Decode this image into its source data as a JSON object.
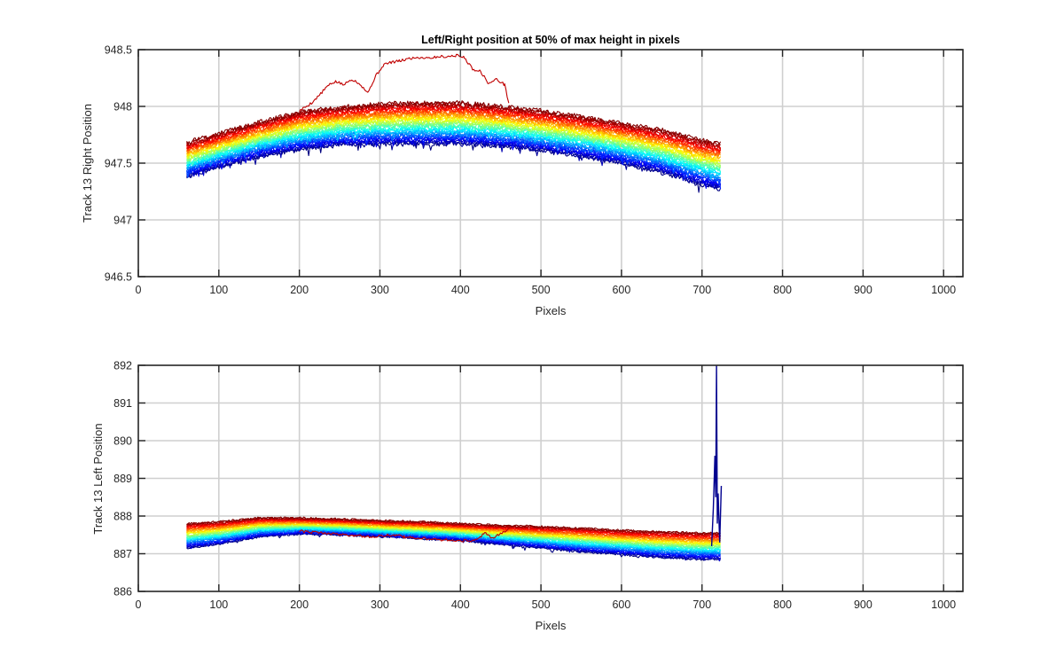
{
  "chart_data": [
    {
      "type": "line",
      "title": "Left/Right position at 50% of max height in pixels",
      "xlabel": "Pixels",
      "ylabel": "Track 13 Right Position",
      "xlim": [
        0,
        1024
      ],
      "ylim": [
        946.5,
        948.5
      ],
      "xticks": [
        0,
        100,
        200,
        300,
        400,
        500,
        600,
        700,
        800,
        900,
        1000
      ],
      "yticks": [
        946.5,
        947,
        947.5,
        948,
        948.5
      ],
      "ytick_labels": [
        "946.5",
        "947",
        "947.5",
        "948",
        "948.5"
      ],
      "grid": true,
      "colormap": "jet",
      "series_count": 40,
      "x_range_data": [
        60,
        724
      ],
      "envelope": {
        "x": [
          60,
          100,
          150,
          200,
          250,
          300,
          350,
          400,
          450,
          500,
          550,
          600,
          650,
          700,
          724
        ],
        "top": [
          947.68,
          947.76,
          947.86,
          947.95,
          947.99,
          948.02,
          948.03,
          948.03,
          948.0,
          947.96,
          947.91,
          947.85,
          947.79,
          947.7,
          947.67
        ],
        "bottom": [
          947.38,
          947.47,
          947.56,
          947.62,
          947.66,
          947.67,
          947.67,
          947.67,
          947.65,
          947.61,
          947.56,
          947.5,
          947.42,
          947.31,
          947.27
        ]
      },
      "outlier_series": {
        "color": "#c00000",
        "x": [
          200,
          215,
          225,
          235,
          245,
          255,
          265,
          275,
          285,
          295,
          305,
          315,
          325,
          335,
          345,
          355,
          365,
          375,
          385,
          395,
          405,
          415,
          425,
          435,
          445,
          455,
          460
        ],
        "y": [
          947.96,
          948.03,
          948.1,
          948.18,
          948.22,
          948.19,
          948.24,
          948.2,
          948.12,
          948.27,
          948.37,
          948.39,
          948.4,
          948.42,
          948.43,
          948.43,
          948.43,
          948.44,
          948.44,
          948.45,
          948.43,
          948.33,
          948.31,
          948.2,
          948.24,
          948.19,
          948.03
        ]
      }
    },
    {
      "type": "line",
      "title": "",
      "xlabel": "Pixels",
      "ylabel": "Track 13 Left Position",
      "xlim": [
        0,
        1024
      ],
      "ylim": [
        886,
        892
      ],
      "xticks": [
        0,
        100,
        200,
        300,
        400,
        500,
        600,
        700,
        800,
        900,
        1000
      ],
      "yticks": [
        886,
        887,
        888,
        889,
        890,
        891,
        892
      ],
      "ytick_labels": [
        "886",
        "887",
        "888",
        "889",
        "890",
        "891",
        "892"
      ],
      "grid": true,
      "colormap": "jet",
      "series_count": 40,
      "x_range_data": [
        60,
        724
      ],
      "envelope": {
        "x": [
          60,
          100,
          150,
          200,
          250,
          300,
          350,
          400,
          450,
          500,
          550,
          600,
          650,
          700,
          724
        ],
        "top": [
          887.8,
          887.85,
          887.95,
          887.95,
          887.92,
          887.88,
          887.85,
          887.8,
          887.75,
          887.72,
          887.68,
          887.62,
          887.58,
          887.55,
          887.55
        ],
        "bottom": [
          887.15,
          887.25,
          887.45,
          887.52,
          887.5,
          887.45,
          887.4,
          887.35,
          887.25,
          887.15,
          887.05,
          886.98,
          886.9,
          886.85,
          886.85
        ]
      },
      "outlier_series": {
        "color": "#c00000",
        "x": [
          200,
          230,
          260,
          290,
          310,
          330,
          360,
          390,
          420,
          430,
          440,
          450,
          460
        ],
        "y": [
          887.6,
          887.55,
          887.5,
          887.45,
          887.5,
          887.45,
          887.4,
          887.35,
          887.35,
          887.55,
          887.4,
          887.55,
          887.65
        ]
      },
      "spike": {
        "color": "#00008f",
        "x": [
          712,
          714,
          716,
          717,
          718,
          719,
          720,
          722,
          724
        ],
        "y": [
          887.2,
          888.2,
          889.6,
          888.5,
          892.0,
          887.8,
          888.6,
          887.3,
          888.8
        ]
      }
    }
  ]
}
